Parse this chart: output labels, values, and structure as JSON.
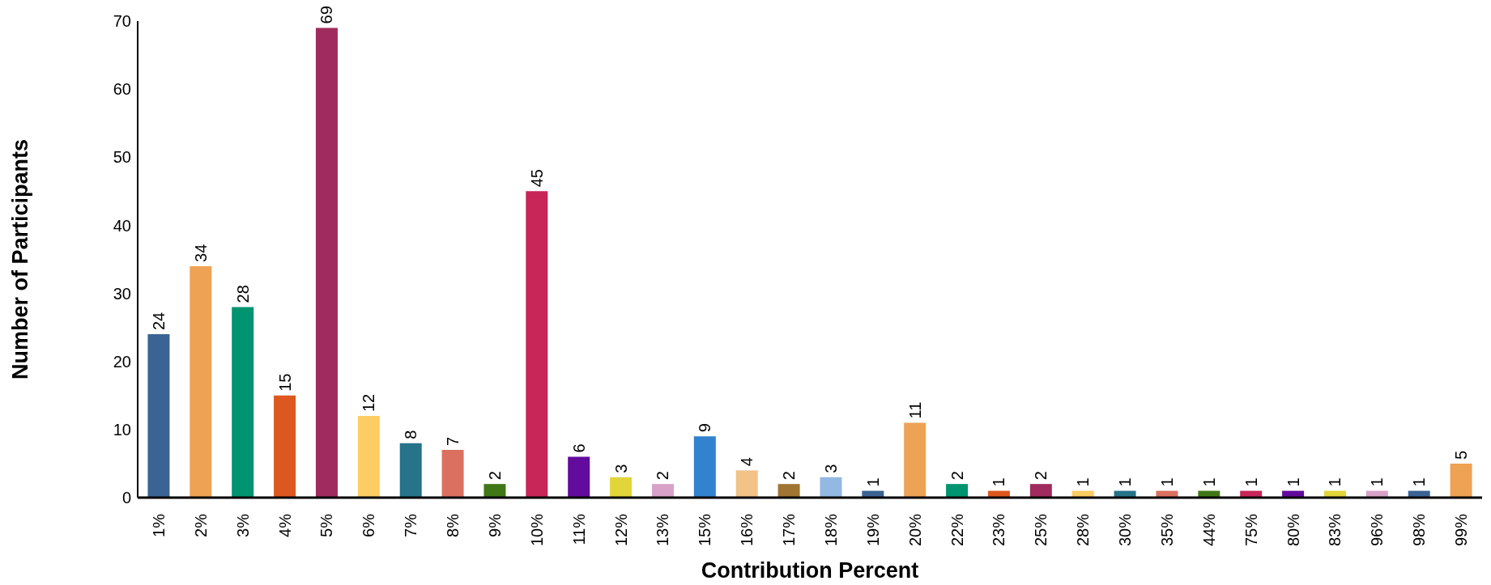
{
  "chart_data": {
    "type": "bar",
    "xlabel": "Contribution Percent",
    "ylabel": "Number of Participants",
    "categories": [
      "1%",
      "2%",
      "3%",
      "4%",
      "5%",
      "6%",
      "7%",
      "8%",
      "9%",
      "10%",
      "11%",
      "12%",
      "13%",
      "15%",
      "16%",
      "17%",
      "18%",
      "19%",
      "20%",
      "22%",
      "23%",
      "25%",
      "28%",
      "30%",
      "35%",
      "44%",
      "75%",
      "80%",
      "83%",
      "96%",
      "98%",
      "99%"
    ],
    "values": [
      24,
      34,
      28,
      15,
      69,
      12,
      8,
      7,
      2,
      45,
      6,
      3,
      2,
      9,
      4,
      2,
      3,
      1,
      11,
      2,
      1,
      2,
      1,
      1,
      1,
      1,
      1,
      1,
      1,
      1,
      1,
      5
    ],
    "colors": [
      "#3b6494",
      "#eea254",
      "#009470",
      "#dc5820",
      "#a02b5e",
      "#fdcc62",
      "#26738a",
      "#dc7060",
      "#407717",
      "#c82658",
      "#620b9c",
      "#e2d53a",
      "#d8a2c8",
      "#3282cf",
      "#f3c286",
      "#a07432",
      "#93b8e3",
      "#3b6494",
      "#eea254",
      "#009470",
      "#dc5820",
      "#a02b5e",
      "#fdcc62",
      "#26738a",
      "#dc7060",
      "#407717",
      "#c82658",
      "#620b9c",
      "#e2d53a",
      "#d8a2c8",
      "#3b6494",
      "#eea254"
    ],
    "ylim": [
      0,
      70
    ],
    "yticks": [
      0,
      10,
      20,
      30,
      40,
      50,
      60,
      70
    ],
    "data_labels": true
  }
}
